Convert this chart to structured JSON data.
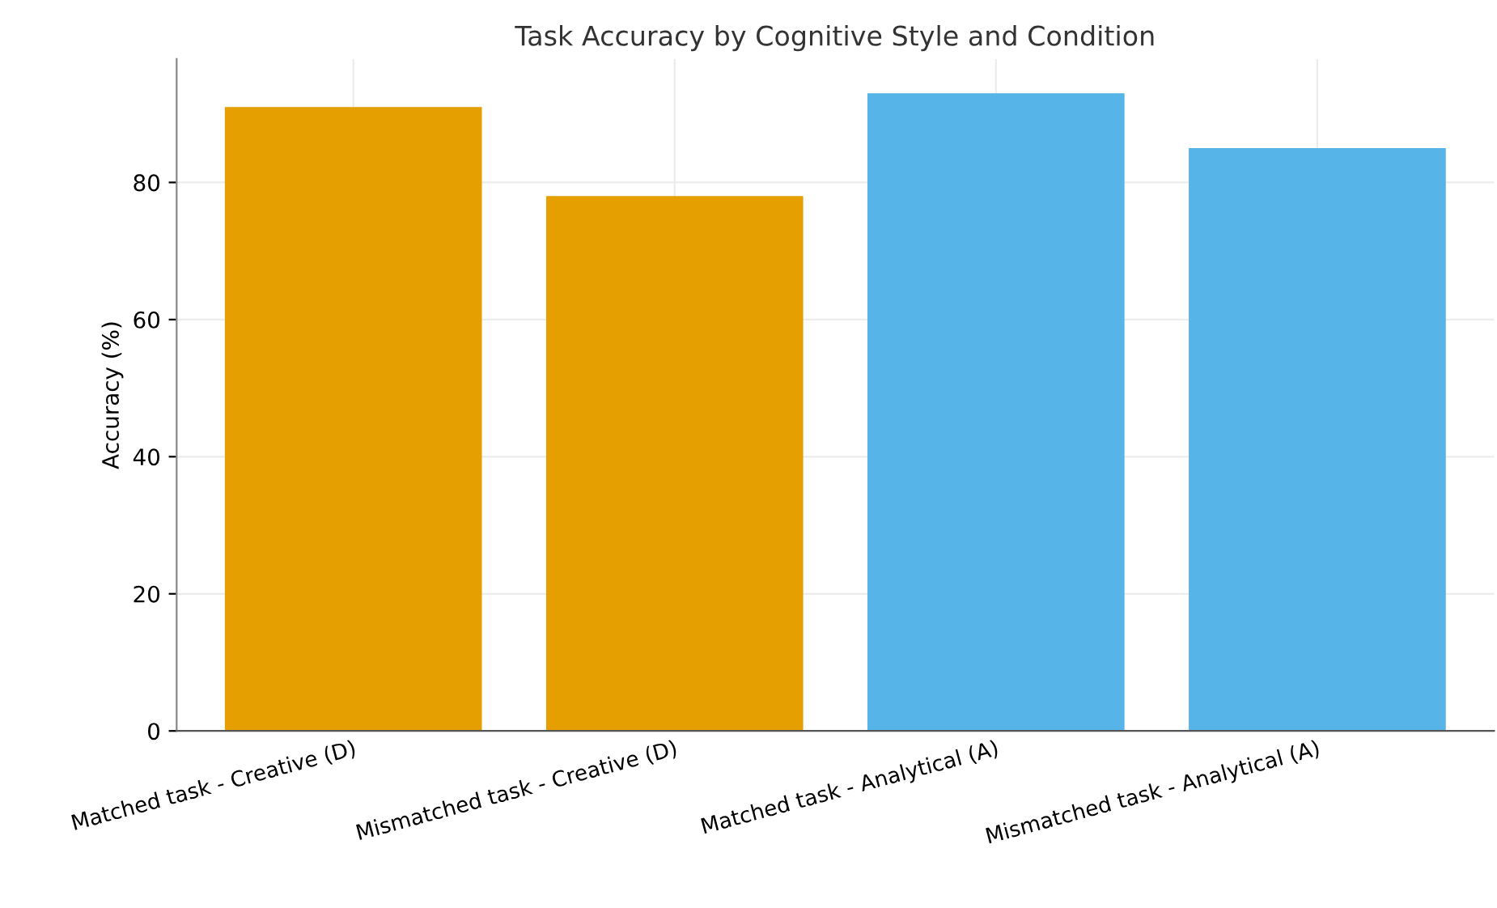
{
  "chart_data": {
    "type": "bar",
    "title": "Task Accuracy by Cognitive Style and Condition",
    "ylabel": "Accuracy (%)",
    "categories": [
      "Matched task - Creative (D)",
      "Mismatched task - Creative (D)",
      "Matched task - Analytical (A)",
      "Mismatched task - Analytical (A)"
    ],
    "values": [
      91,
      78,
      93,
      85
    ],
    "colors": [
      "#e69f00",
      "#e69f00",
      "#56b4e9",
      "#56b4e9"
    ],
    "ylim": [
      0,
      98
    ],
    "yticks": [
      0,
      20,
      40,
      60,
      80
    ],
    "grid": true
  }
}
